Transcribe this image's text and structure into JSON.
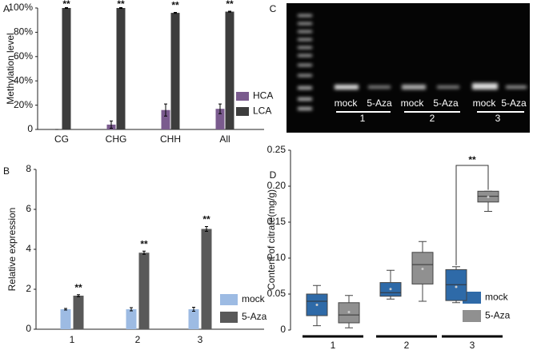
{
  "chart_data": [
    {
      "type": "bar",
      "label": "A",
      "ylabel": "Methylation level",
      "categories": [
        "CG",
        "CHG",
        "CHH",
        "All"
      ],
      "series": [
        {
          "name": "HCA",
          "color": "#7a5b8e",
          "values": [
            0,
            4,
            16,
            17
          ],
          "errors": [
            0,
            3,
            5,
            4
          ]
        },
        {
          "name": "LCA",
          "color": "#3d3d3d",
          "values": [
            100,
            100,
            96,
            97
          ],
          "errors": [
            0.3,
            0.3,
            0.4,
            0.4
          ]
        }
      ],
      "annotations": [
        "**",
        "**",
        "**",
        "**"
      ],
      "ylim": [
        0,
        100
      ],
      "yticks": [
        0,
        {
          "value": 20,
          "label": "20%"
        },
        {
          "value": 40,
          "label": "40%"
        },
        {
          "value": 60,
          "label": "60%"
        },
        {
          "value": 80,
          "label": "80%"
        },
        {
          "value": 100,
          "label": "100%"
        }
      ],
      "legend": "lower right"
    },
    {
      "type": "bar",
      "label": "B",
      "ylabel": "Relative expression",
      "categories": [
        "1",
        "2",
        "3"
      ],
      "series": [
        {
          "name": "mock",
          "color": "#9dbbe3",
          "values": [
            1,
            1,
            1
          ],
          "errors": [
            0.04,
            0.08,
            0.1
          ]
        },
        {
          "name": "5-Aza",
          "color": "#595959",
          "values": [
            1.68,
            3.83,
            5.02
          ],
          "errors": [
            0.05,
            0.08,
            0.12
          ]
        }
      ],
      "annotations": [
        "**",
        "**",
        "**"
      ],
      "ylim": [
        0,
        8
      ],
      "yticks": [
        0,
        2,
        4,
        6,
        8
      ],
      "legend": "lower right"
    },
    {
      "type": "image",
      "label": "C",
      "lane_labels": [
        "mock",
        "5-Aza",
        "mock",
        "5-Aza",
        "mock",
        "5-Aza"
      ],
      "group_labels": [
        "1",
        "2",
        "3"
      ]
    },
    {
      "type": "box",
      "label": "D",
      "ylabel": "Content of citrate(mg/g)",
      "categories": [
        "1",
        "2",
        "3"
      ],
      "series": [
        {
          "name": "mock",
          "color": "#2e6aa8",
          "values": [
            {
              "min": 0.006,
              "q1": 0.02,
              "median": 0.04,
              "q3": 0.05,
              "max": 0.062,
              "mean": 0.035
            },
            {
              "min": 0.043,
              "q1": 0.047,
              "median": 0.052,
              "q3": 0.066,
              "max": 0.083,
              "mean": 0.057
            },
            {
              "min": 0.038,
              "q1": 0.041,
              "median": 0.063,
              "q3": 0.084,
              "max": 0.088,
              "mean": 0.06
            }
          ]
        },
        {
          "name": "5-Aza",
          "color": "#909090",
          "values": [
            {
              "min": 0.003,
              "q1": 0.01,
              "median": 0.021,
              "q3": 0.038,
              "max": 0.048,
              "mean": 0.025
            },
            {
              "min": 0.04,
              "q1": 0.064,
              "median": 0.091,
              "q3": 0.108,
              "max": 0.123,
              "mean": 0.085
            },
            {
              "min": 0.165,
              "q1": 0.178,
              "median": 0.186,
              "q3": 0.193,
              "max": 0.193,
              "mean": 0.185
            }
          ]
        }
      ],
      "annotation": "**",
      "ylim": [
        0,
        0.25
      ],
      "yticks": [
        0,
        0.05,
        {
          "value": 0.1,
          "label": "0.10"
        },
        0.15,
        {
          "value": 0.2,
          "label": "0.20"
        },
        0.25
      ],
      "legend": "lower right"
    }
  ]
}
